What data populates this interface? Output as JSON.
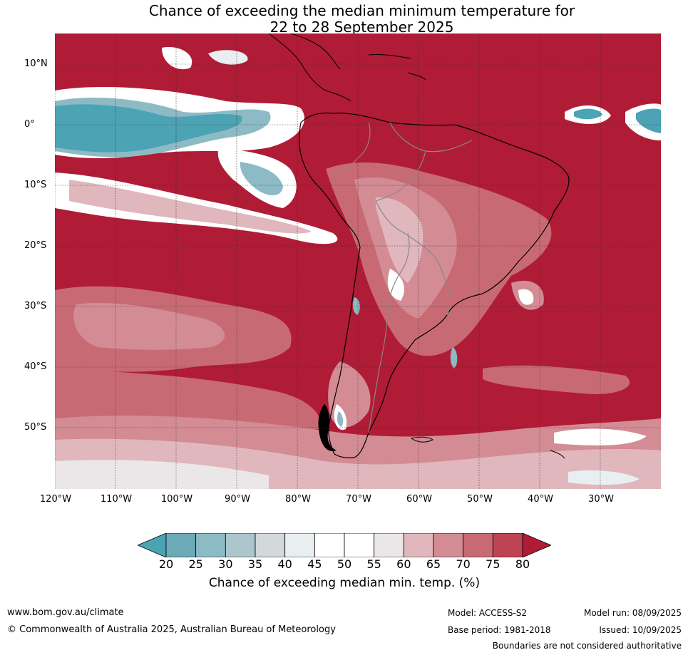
{
  "title": {
    "line1": "Chance of exceeding the median minimum temperature for",
    "line2": "22 to 28 September 2025"
  },
  "latitude_labels": [
    "10°N",
    "0°",
    "10°S",
    "20°S",
    "30°S",
    "40°S",
    "50°S"
  ],
  "longitude_labels": [
    "120°W",
    "110°W",
    "100°W",
    "90°W",
    "80°W",
    "70°W",
    "60°W",
    "50°W",
    "40°W",
    "30°W"
  ],
  "colorbar": {
    "ticks": [
      "20",
      "25",
      "30",
      "35",
      "40",
      "45",
      "50",
      "55",
      "60",
      "65",
      "70",
      "75",
      "80"
    ],
    "label": "Chance of exceeding median min. temp. (%)",
    "colors": [
      "#4ba3b4",
      "#6caab8",
      "#8cbac5",
      "#adc6cc",
      "#d3d9da",
      "#e9eff1",
      "#ffffff",
      "#ffffff",
      "#ebe7e8",
      "#e0b7bd",
      "#d38b94",
      "#c86a74",
      "#be4353",
      "#b01b36"
    ]
  },
  "footer": {
    "website": "www.bom.gov.au/climate",
    "copyright": "© Commonwealth of Australia 2025, Australian Bureau of Meteorology",
    "model": "Model: ACCESS-S2",
    "base_period": "Base period: 1981-2018",
    "model_run": "Model run: 08/09/2025",
    "issued": "Issued: 10/09/2025",
    "disclaimer": "Boundaries are not considered authoritative"
  }
}
